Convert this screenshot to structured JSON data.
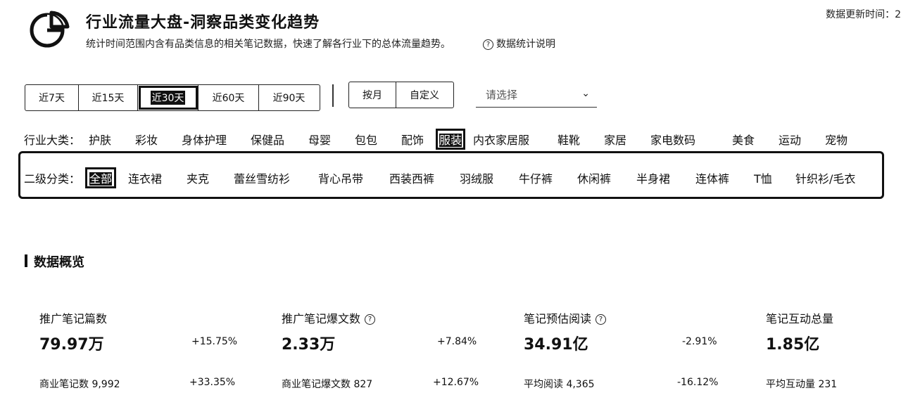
{
  "header": {
    "title": "行业流量大盘-洞察品类变化趋势",
    "subtitle": "统计时间范围内含有品类信息的相关笔记数据，快速了解各行业下的总体流量趋势。",
    "help_label": "数据统计说明",
    "update_time_label": "数据更新时间：2"
  },
  "time_range": {
    "options": [
      "近7天",
      "近15天",
      "近30天",
      "近60天",
      "近90天"
    ],
    "selected": "近30天"
  },
  "mode": {
    "options": [
      "按月",
      "自定义"
    ]
  },
  "date_select": {
    "placeholder": "请选择"
  },
  "industry": {
    "label": "行业大类：",
    "items": [
      "护肤",
      "彩妆",
      "身体护理",
      "保健品",
      "母婴",
      "包包",
      "配饰",
      "服装",
      "内衣家居服",
      "鞋靴",
      "家居",
      "家电数码",
      "美食",
      "运动",
      "宠物"
    ],
    "selected": "服装"
  },
  "subcategory": {
    "label": "二级分类：",
    "items": [
      "全部",
      "连衣裙",
      "夹克",
      "蕾丝雪纺衫",
      "背心吊带",
      "西装西裤",
      "羽绒服",
      "牛仔裤",
      "休闲裤",
      "半身裙",
      "连体裤",
      "T恤",
      "针织衫/毛衣"
    ],
    "selected": "全部"
  },
  "overview": {
    "title": "数据概览",
    "metrics": [
      {
        "name": "推广笔记篇数",
        "value": "79.97万",
        "change": "+15.75%",
        "sub_name": "商业笔记数 9,992",
        "sub_change": "+33.35%",
        "help": false
      },
      {
        "name": "推广笔记爆文数",
        "value": "2.33万",
        "change": "+7.84%",
        "sub_name": "商业笔记爆文数 827",
        "sub_change": "+12.67%",
        "help": true
      },
      {
        "name": "笔记预估阅读",
        "value": "34.91亿",
        "change": "-2.91%",
        "sub_name": "平均阅读 4,365",
        "sub_change": "-16.12%",
        "help": true
      },
      {
        "name": "笔记互动总量",
        "value": "1.85亿",
        "change": "",
        "sub_name": "平均互动量 231",
        "sub_change": "",
        "help": false
      }
    ]
  }
}
